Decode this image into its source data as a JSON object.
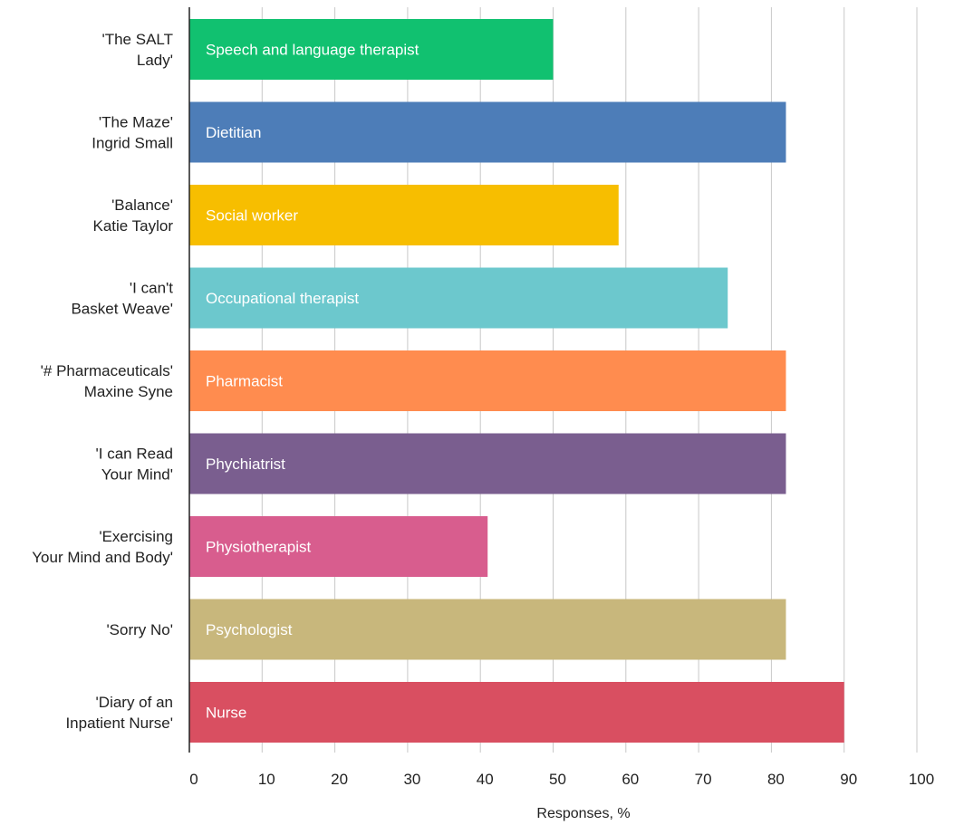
{
  "chart_data": {
    "type": "bar",
    "orientation": "horizontal",
    "categories": [
      [
        "'The SALT",
        "Lady'"
      ],
      [
        "'The Maze'",
        "Ingrid Small"
      ],
      [
        "'Balance'",
        "Katie Taylor"
      ],
      [
        "'I can't",
        "Basket Weave'"
      ],
      [
        "'# Pharmaceuticals'",
        "Maxine Syne"
      ],
      [
        "'I can Read",
        "Your Mind'"
      ],
      [
        "'Exercising",
        "Your Mind and Body'"
      ],
      [
        "'Sorry No'"
      ],
      [
        "'Diary of an",
        "Inpatient Nurse'"
      ]
    ],
    "bar_labels": [
      "Speech and language therapist",
      "Dietitian",
      "Social worker",
      "Occupational therapist",
      "Pharmacist",
      "Phychiatrist",
      "Physiotherapist",
      "Psychologist",
      "Nurse"
    ],
    "values": [
      50,
      82,
      59,
      74,
      82,
      82,
      41,
      82,
      90
    ],
    "colors": [
      "#11c170",
      "#4d7db8",
      "#f7be00",
      "#6cc8cd",
      "#ff8c4f",
      "#7a5e8f",
      "#d85d8e",
      "#c8b77c",
      "#d94f61"
    ],
    "xlabel": "Responses, %",
    "xlim": [
      0,
      100
    ],
    "xticks": [
      0,
      10,
      20,
      30,
      40,
      50,
      60,
      70,
      80,
      90,
      100
    ],
    "grid": "vertical"
  }
}
